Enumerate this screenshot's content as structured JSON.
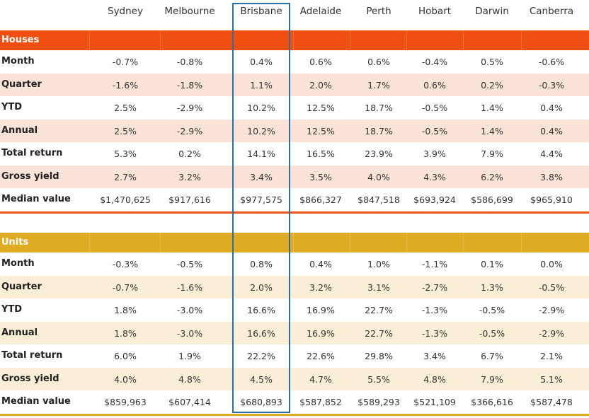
{
  "colors": {
    "houses_band": "#ef4f0f",
    "houses_alt": "#fce3d8",
    "houses_rule": "#e8551a",
    "units_band": "#dfab22",
    "units_alt": "#faefd6",
    "units_rule": "#dfab22",
    "highlight": "#2b6fa6"
  },
  "cities": [
    "Sydney",
    "Melbourne",
    "Brisbane",
    "Adelaide",
    "Perth",
    "Hobart",
    "Darwin",
    "Canberra"
  ],
  "highlighted_city": "Brisbane",
  "houses": {
    "label": "Houses",
    "rows": [
      {
        "label": "Month",
        "values": [
          "-0.7%",
          "-0.8%",
          "0.4%",
          "0.6%",
          "0.6%",
          "-0.4%",
          "0.5%",
          "-0.6%"
        ]
      },
      {
        "label": "Quarter",
        "values": [
          "-1.6%",
          "-1.8%",
          "1.1%",
          "2.0%",
          "1.7%",
          "0.6%",
          "0.2%",
          "-0.3%"
        ]
      },
      {
        "label": "YTD",
        "values": [
          "2.5%",
          "-2.9%",
          "10.2%",
          "12.5%",
          "18.7%",
          "-0.5%",
          "1.4%",
          "0.4%"
        ]
      },
      {
        "label": "Annual",
        "values": [
          "2.5%",
          "-2.9%",
          "10.2%",
          "12.5%",
          "18.7%",
          "-0.5%",
          "1.4%",
          "0.4%"
        ]
      },
      {
        "label": "Total return",
        "values": [
          "5.3%",
          "0.2%",
          "14.1%",
          "16.5%",
          "23.9%",
          "3.9%",
          "7.9%",
          "4.4%"
        ]
      },
      {
        "label": "Gross yield",
        "values": [
          "2.7%",
          "3.2%",
          "3.4%",
          "3.5%",
          "4.0%",
          "4.3%",
          "6.2%",
          "3.8%"
        ]
      },
      {
        "label": "Median value",
        "values": [
          "$1,470,625",
          "$917,616",
          "$977,575",
          "$866,327",
          "$847,518",
          "$693,924",
          "$586,699",
          "$965,910"
        ]
      }
    ]
  },
  "units": {
    "label": "Units",
    "rows": [
      {
        "label": "Month",
        "values": [
          "-0.3%",
          "-0.5%",
          "0.8%",
          "0.4%",
          "1.0%",
          "-1.1%",
          "0.1%",
          "0.0%"
        ]
      },
      {
        "label": "Quarter",
        "values": [
          "-0.7%",
          "-1.6%",
          "2.0%",
          "3.2%",
          "3.1%",
          "-2.7%",
          "1.3%",
          "-0.5%"
        ]
      },
      {
        "label": "YTD",
        "values": [
          "1.8%",
          "-3.0%",
          "16.6%",
          "16.9%",
          "22.7%",
          "-1.3%",
          "-0.5%",
          "-2.9%"
        ]
      },
      {
        "label": "Annual",
        "values": [
          "1.8%",
          "-3.0%",
          "16.6%",
          "16.9%",
          "22.7%",
          "-1.3%",
          "-0.5%",
          "-2.9%"
        ]
      },
      {
        "label": "Total return",
        "values": [
          "6.0%",
          "1.9%",
          "22.2%",
          "22.6%",
          "29.8%",
          "3.4%",
          "6.7%",
          "2.1%"
        ]
      },
      {
        "label": "Gross yield",
        "values": [
          "4.0%",
          "4.8%",
          "4.5%",
          "4.7%",
          "5.5%",
          "4.8%",
          "7.9%",
          "5.1%"
        ]
      },
      {
        "label": "Median value",
        "values": [
          "$859,963",
          "$607,414",
          "$680,893",
          "$587,852",
          "$589,293",
          "$521,109",
          "$366,616",
          "$587,478"
        ]
      }
    ]
  }
}
